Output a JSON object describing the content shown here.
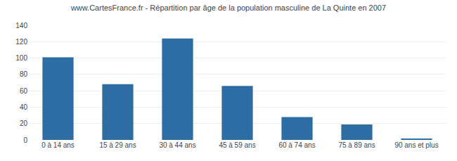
{
  "chart_data": {
    "type": "bar",
    "title": "www.CartesFrance.fr - Répartition par âge de la population masculine de La Quinte en 2007",
    "categories": [
      "0 à 14 ans",
      "15 à 29 ans",
      "30 à 44 ans",
      "45 à 59 ans",
      "60 à 74 ans",
      "75 à 89 ans",
      "90 ans et plus"
    ],
    "values": [
      101,
      68,
      124,
      66,
      28,
      19,
      1
    ],
    "color": "#2e6da4",
    "ylim": [
      0,
      140
    ],
    "yticks": [
      0,
      20,
      40,
      60,
      80,
      100,
      120,
      140
    ],
    "grid": true
  }
}
